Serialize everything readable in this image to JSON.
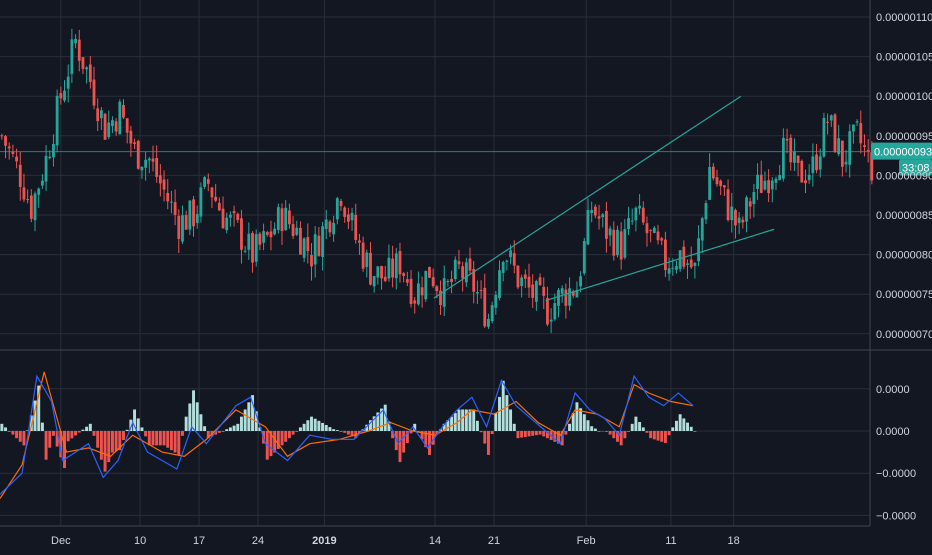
{
  "colors": {
    "background": "#131722",
    "grid": "#2a2e39",
    "up": "#26a69a",
    "down": "#ef5350",
    "axis_text": "#d1d4dc",
    "macd_line": "#2962ff",
    "signal_line": "#ff6d00",
    "hist_up": "#b2dfdb",
    "hist_down": "#ef5350",
    "trendline": "#26a69a",
    "price_tag_bg": "#26a69a",
    "price_tag_text": "#ffffff"
  },
  "chart_data": [
    {
      "type": "candlestick",
      "price_axis": {
        "ticks": [
          "0.00000110",
          "0.00000105",
          "0.00000100",
          "0.00000095",
          "0.00000090",
          "0.00000085",
          "0.00000080",
          "0.00000075",
          "0.00000070"
        ],
        "tick_values": [
          1.1,
          1.05,
          1.0,
          0.95,
          0.9,
          0.85,
          0.8,
          0.75,
          0.7
        ],
        "unit_multiplier": "1e-6",
        "ylim": [
          0.68,
          1.12
        ]
      },
      "last_price": {
        "label": "0.00000093",
        "value": 0.93,
        "countdown": "33:08"
      },
      "close_path": [
        [
          0,
          0.95
        ],
        [
          5,
          0.9
        ],
        [
          8,
          0.86
        ],
        [
          12,
          0.92
        ],
        [
          16,
          1.0
        ],
        [
          20,
          1.07
        ],
        [
          24,
          1.02
        ],
        [
          28,
          0.96
        ],
        [
          32,
          0.98
        ],
        [
          36,
          0.93
        ],
        [
          40,
          0.92
        ],
        [
          44,
          0.88
        ],
        [
          48,
          0.84
        ],
        [
          52,
          0.85
        ],
        [
          56,
          0.89
        ],
        [
          60,
          0.85
        ],
        [
          64,
          0.83
        ],
        [
          68,
          0.8
        ],
        [
          72,
          0.82
        ],
        [
          76,
          0.85
        ],
        [
          80,
          0.83
        ],
        [
          84,
          0.8
        ],
        [
          88,
          0.84
        ],
        [
          92,
          0.88
        ],
        [
          96,
          0.82
        ],
        [
          100,
          0.78
        ],
        [
          104,
          0.77
        ],
        [
          108,
          0.79
        ],
        [
          112,
          0.75
        ],
        [
          116,
          0.78
        ],
        [
          120,
          0.75
        ],
        [
          124,
          0.78
        ],
        [
          128,
          0.76
        ],
        [
          132,
          0.72
        ],
        [
          136,
          0.81
        ],
        [
          140,
          0.77
        ],
        [
          144,
          0.75
        ],
        [
          148,
          0.73
        ],
        [
          152,
          0.75
        ],
        [
          156,
          0.76
        ],
        [
          160,
          0.86
        ],
        [
          164,
          0.83
        ],
        [
          168,
          0.81
        ],
        [
          172,
          0.85
        ],
        [
          176,
          0.82
        ],
        [
          180,
          0.79
        ],
        [
          184,
          0.8
        ],
        [
          188,
          0.78
        ],
        [
          192,
          0.91
        ],
        [
          196,
          0.87
        ],
        [
          200,
          0.83
        ],
        [
          204,
          0.88
        ],
        [
          208,
          0.9
        ],
        [
          212,
          0.93
        ],
        [
          216,
          0.9
        ],
        [
          220,
          0.91
        ],
        [
          224,
          0.97
        ],
        [
          228,
          0.92
        ],
        [
          232,
          0.95
        ],
        [
          236,
          0.91
        ]
      ],
      "trendlines": [
        {
          "name": "rising-trendline-steep",
          "from": [
            117.7,
            0.745
          ],
          "to": [
            201,
            1.0
          ]
        },
        {
          "name": "rising-trendline-shallow",
          "from": [
            148,
            0.742
          ],
          "to": [
            210,
            0.832
          ]
        }
      ],
      "time_axis": {
        "labels": [
          {
            "text": "Dec",
            "bar": 16.5,
            "bold": false
          },
          {
            "text": "10",
            "bar": 38,
            "bold": false
          },
          {
            "text": "17",
            "bar": 54,
            "bold": false
          },
          {
            "text": "24",
            "bar": 70,
            "bold": false
          },
          {
            "text": "2019",
            "bar": 88,
            "bold": true
          },
          {
            "text": "14",
            "bar": 118,
            "bold": false
          },
          {
            "text": "21",
            "bar": 134,
            "bold": false
          },
          {
            "text": "Feb",
            "bar": 159,
            "bold": false
          },
          {
            "text": "11",
            "bar": 182,
            "bold": false
          },
          {
            "text": "18",
            "bar": 199,
            "bold": false
          }
        ]
      }
    },
    {
      "type": "macd",
      "axis": {
        "ticks": [
          "0.0000",
          "0.0000",
          "−0.0000",
          "−0.0000"
        ],
        "tick_values": [
          1,
          0,
          -1,
          -2
        ],
        "ylim": [
          -2.3,
          1.9
        ]
      },
      "macd_series": [
        [
          0,
          -1.5
        ],
        [
          6,
          -1.0
        ],
        [
          10,
          1.3
        ],
        [
          14,
          0.7
        ],
        [
          17,
          -0.7
        ],
        [
          24,
          -0.3
        ],
        [
          28,
          -1.1
        ],
        [
          32,
          -0.7
        ],
        [
          36,
          0.2
        ],
        [
          40,
          -0.5
        ],
        [
          48,
          -0.9
        ],
        [
          52,
          0.1
        ],
        [
          56,
          -0.3
        ],
        [
          64,
          0.6
        ],
        [
          68,
          0.8
        ],
        [
          72,
          -0.3
        ],
        [
          78,
          -0.7
        ],
        [
          84,
          -0.1
        ],
        [
          90,
          -0.2
        ],
        [
          96,
          -0.2
        ],
        [
          104,
          0.5
        ],
        [
          108,
          -0.3
        ],
        [
          112,
          0.1
        ],
        [
          116,
          -0.4
        ],
        [
          120,
          0.1
        ],
        [
          124,
          0.5
        ],
        [
          128,
          0.8
        ],
        [
          132,
          0.1
        ],
        [
          136,
          1.2
        ],
        [
          140,
          0.6
        ],
        [
          144,
          0.3
        ],
        [
          148,
          0.0
        ],
        [
          152,
          -0.3
        ],
        [
          156,
          0.9
        ],
        [
          160,
          0.5
        ],
        [
          164,
          0.3
        ],
        [
          168,
          -0.1
        ],
        [
          172,
          1.3
        ],
        [
          176,
          0.8
        ],
        [
          180,
          0.6
        ],
        [
          184,
          0.9
        ],
        [
          188,
          0.6
        ]
      ],
      "signal_series": [
        [
          0,
          -1.6
        ],
        [
          6,
          -0.8
        ],
        [
          12,
          1.4
        ],
        [
          18,
          -0.5
        ],
        [
          24,
          -0.4
        ],
        [
          30,
          -0.6
        ],
        [
          36,
          -0.1
        ],
        [
          44,
          -0.5
        ],
        [
          50,
          -0.6
        ],
        [
          56,
          -0.2
        ],
        [
          64,
          0.5
        ],
        [
          72,
          0.1
        ],
        [
          78,
          -0.6
        ],
        [
          84,
          -0.3
        ],
        [
          92,
          -0.2
        ],
        [
          100,
          0.0
        ],
        [
          106,
          0.2
        ],
        [
          112,
          0.0
        ],
        [
          118,
          -0.1
        ],
        [
          124,
          0.2
        ],
        [
          128,
          0.5
        ],
        [
          134,
          0.4
        ],
        [
          140,
          0.7
        ],
        [
          146,
          0.2
        ],
        [
          152,
          -0.1
        ],
        [
          156,
          0.5
        ],
        [
          162,
          0.4
        ],
        [
          168,
          0.1
        ],
        [
          172,
          1.1
        ],
        [
          176,
          0.9
        ],
        [
          182,
          0.7
        ],
        [
          188,
          0.6
        ]
      ]
    }
  ]
}
